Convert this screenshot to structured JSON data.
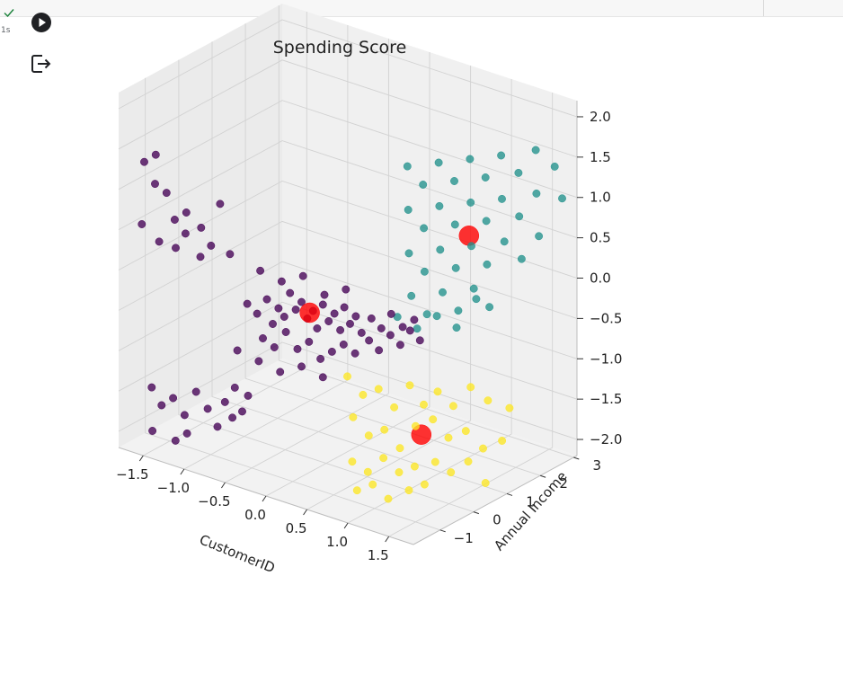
{
  "cell": {
    "exec_time": "1s",
    "status": "success",
    "run_icon": "play-circle-icon",
    "output_icon": "output-arrow-icon",
    "check_color": "#188038"
  },
  "chart_data": {
    "type": "scatter",
    "projection": "3d",
    "title": "Spending Score",
    "xlabel": "CustomerID",
    "ylabel": "Annual Income",
    "zlabel": "",
    "xlim": [
      -1.8,
      1.8
    ],
    "ylim": [
      -1.8,
      3.1
    ],
    "zlim": [
      -2.2,
      2.2
    ],
    "xticks": [
      "−1.5",
      "−1.0",
      "−0.5",
      "0.0",
      "0.5",
      "1.0",
      "1.5"
    ],
    "yticks": [
      "−1",
      "0",
      "1",
      "2",
      "3"
    ],
    "zticks": [
      "2.0",
      "1.5",
      "1.0",
      "0.5",
      "0.0",
      "−0.5",
      "−1.0",
      "−1.5",
      "−2.0"
    ],
    "grid": true,
    "colors": {
      "cluster_0": "#440154",
      "cluster_1": "#21918c",
      "cluster_2": "#fde725",
      "centroid": "#ff0000"
    },
    "clusters": [
      {
        "cluster": 0,
        "color": "#440154",
        "points": [
          [
            -1.65,
            -1.4,
            1.3
          ],
          [
            -1.55,
            -1.3,
            1.4
          ],
          [
            -1.6,
            -1.2,
            1.0
          ],
          [
            -1.5,
            -1.1,
            0.9
          ],
          [
            -1.7,
            -1.35,
            0.5
          ],
          [
            -1.55,
            -1.2,
            0.3
          ],
          [
            -1.4,
            -1.1,
            0.6
          ],
          [
            -1.3,
            -1.0,
            0.7
          ],
          [
            -1.45,
            -0.95,
            0.2
          ],
          [
            -1.35,
            -0.9,
            0.4
          ],
          [
            -1.2,
            -0.8,
            0.5
          ],
          [
            -1.1,
            -0.75,
            0.3
          ],
          [
            -1.25,
            -0.7,
            0.1
          ],
          [
            -1.05,
            -0.6,
            0.8
          ],
          [
            -0.95,
            -0.55,
            0.2
          ],
          [
            -1.6,
            -1.3,
            -1.5
          ],
          [
            -1.5,
            -1.25,
            -1.7
          ],
          [
            -1.4,
            -1.15,
            -1.6
          ],
          [
            -1.3,
            -1.05,
            -1.8
          ],
          [
            -1.55,
            -1.4,
            -2.0
          ],
          [
            -1.2,
            -0.95,
            -1.5
          ],
          [
            -1.1,
            -0.85,
            -1.7
          ],
          [
            -1.0,
            -0.8,
            -1.9
          ],
          [
            -1.35,
            -1.2,
            -2.1
          ],
          [
            -1.25,
            -1.1,
            -2.0
          ],
          [
            -0.95,
            -0.7,
            -1.6
          ],
          [
            -0.85,
            -0.65,
            -1.4
          ],
          [
            -0.9,
            -0.6,
            -1.8
          ],
          [
            -0.8,
            -0.55,
            -1.7
          ],
          [
            -0.75,
            -0.5,
            -1.5
          ],
          [
            -0.8,
            -0.4,
            -0.4
          ],
          [
            -0.7,
            -0.35,
            -0.5
          ],
          [
            -0.6,
            -0.3,
            -0.3
          ],
          [
            -0.55,
            -0.25,
            -0.6
          ],
          [
            -0.5,
            -0.2,
            -0.4
          ],
          [
            -0.45,
            -0.15,
            -0.5
          ],
          [
            -0.4,
            -0.1,
            -0.2
          ],
          [
            -0.35,
            -0.05,
            -0.4
          ],
          [
            -0.3,
            0.0,
            -0.3
          ],
          [
            -0.25,
            0.05,
            -0.5
          ],
          [
            -0.2,
            0.1,
            -0.4
          ],
          [
            -0.15,
            0.1,
            -0.6
          ],
          [
            -0.1,
            0.15,
            -0.3
          ],
          [
            -0.05,
            0.2,
            -0.5
          ],
          [
            0.0,
            0.25,
            -0.4
          ],
          [
            0.05,
            0.3,
            -0.6
          ],
          [
            0.1,
            0.3,
            -0.3
          ],
          [
            0.15,
            0.35,
            -0.5
          ],
          [
            0.2,
            0.4,
            -0.4
          ],
          [
            0.25,
            0.45,
            -0.6
          ],
          [
            -0.65,
            -0.3,
            -0.8
          ],
          [
            -0.55,
            -0.2,
            -0.9
          ],
          [
            -0.45,
            -0.1,
            -0.7
          ],
          [
            -0.35,
            0.0,
            -0.9
          ],
          [
            -0.25,
            0.1,
            -0.8
          ],
          [
            -0.15,
            0.2,
            -1.0
          ],
          [
            -0.05,
            0.3,
            -0.9
          ],
          [
            0.05,
            0.4,
            -0.8
          ],
          [
            0.15,
            0.5,
            -0.9
          ],
          [
            0.3,
            0.55,
            -0.7
          ],
          [
            0.4,
            0.6,
            -0.8
          ],
          [
            0.5,
            0.7,
            -0.6
          ],
          [
            0.6,
            0.75,
            -0.7
          ],
          [
            0.7,
            0.8,
            -0.5
          ],
          [
            0.8,
            0.85,
            -0.6
          ],
          [
            0.35,
            0.5,
            -0.4
          ],
          [
            0.45,
            0.55,
            -0.5
          ],
          [
            0.55,
            0.6,
            -0.3
          ],
          [
            0.65,
            0.7,
            -0.45
          ],
          [
            0.75,
            0.8,
            -0.35
          ],
          [
            -0.9,
            -0.45,
            -1.0
          ],
          [
            -0.7,
            -0.3,
            -1.1
          ],
          [
            -0.5,
            -0.15,
            -1.2
          ],
          [
            -0.3,
            0.0,
            -1.1
          ],
          [
            -0.1,
            0.15,
            -1.2
          ],
          [
            -0.6,
            -0.5,
            0.1
          ],
          [
            -0.4,
            -0.35,
            0.0
          ],
          [
            -0.2,
            -0.2,
            0.1
          ],
          [
            0.0,
            -0.05,
            -0.1
          ],
          [
            0.2,
            0.1,
            0.0
          ]
        ]
      },
      {
        "cluster": 1,
        "color": "#21918c",
        "points": [
          [
            0.3,
            1.7,
            1.2
          ],
          [
            0.45,
            1.8,
            1.0
          ],
          [
            0.6,
            1.9,
            1.3
          ],
          [
            0.75,
            2.0,
            1.1
          ],
          [
            0.9,
            2.1,
            1.4
          ],
          [
            1.05,
            2.2,
            1.2
          ],
          [
            1.2,
            2.3,
            1.5
          ],
          [
            1.35,
            2.45,
            1.3
          ],
          [
            1.5,
            2.6,
            1.6
          ],
          [
            1.65,
            2.8,
            1.4
          ],
          [
            0.35,
            1.6,
            0.7
          ],
          [
            0.5,
            1.7,
            0.5
          ],
          [
            0.65,
            1.8,
            0.8
          ],
          [
            0.8,
            1.9,
            0.6
          ],
          [
            0.95,
            2.0,
            0.9
          ],
          [
            1.1,
            2.1,
            0.7
          ],
          [
            1.25,
            2.2,
            1.0
          ],
          [
            1.4,
            2.35,
            0.8
          ],
          [
            1.55,
            2.5,
            1.1
          ],
          [
            1.7,
            2.9,
            1.0
          ],
          [
            0.4,
            1.5,
            0.2
          ],
          [
            0.55,
            1.6,
            0.0
          ],
          [
            0.7,
            1.7,
            0.3
          ],
          [
            0.85,
            1.8,
            0.1
          ],
          [
            1.0,
            1.9,
            0.4
          ],
          [
            1.15,
            2.0,
            0.2
          ],
          [
            1.3,
            2.15,
            0.5
          ],
          [
            1.45,
            2.3,
            0.3
          ],
          [
            1.6,
            2.45,
            0.6
          ],
          [
            0.45,
            1.45,
            -0.3
          ],
          [
            0.6,
            1.55,
            -0.5
          ],
          [
            0.75,
            1.65,
            -0.2
          ],
          [
            0.9,
            1.75,
            -0.4
          ],
          [
            1.05,
            1.85,
            -0.1
          ],
          [
            1.2,
            1.95,
            -0.3
          ],
          [
            0.3,
            1.4,
            -0.6
          ],
          [
            0.5,
            1.5,
            -0.7
          ],
          [
            0.7,
            1.6,
            -0.5
          ],
          [
            0.9,
            1.7,
            -0.6
          ],
          [
            1.1,
            1.8,
            -0.2
          ]
        ]
      },
      {
        "cluster": 2,
        "color": "#fde725",
        "points": [
          [
            0.3,
            -0.1,
            -1.0
          ],
          [
            0.45,
            0.0,
            -1.2
          ],
          [
            0.6,
            0.1,
            -1.1
          ],
          [
            0.75,
            0.2,
            -1.3
          ],
          [
            0.9,
            0.3,
            -1.0
          ],
          [
            0.35,
            -0.05,
            -1.5
          ],
          [
            0.5,
            0.05,
            -1.7
          ],
          [
            0.65,
            0.15,
            -1.6
          ],
          [
            0.8,
            0.25,
            -1.8
          ],
          [
            0.95,
            0.35,
            -1.5
          ],
          [
            0.4,
            -0.2,
            -2.0
          ],
          [
            0.55,
            -0.1,
            -2.1
          ],
          [
            0.7,
            0.0,
            -1.9
          ],
          [
            0.85,
            0.1,
            -2.05
          ],
          [
            1.0,
            0.2,
            -1.95
          ],
          [
            1.1,
            0.5,
            -1.4
          ],
          [
            1.25,
            0.6,
            -1.6
          ],
          [
            1.4,
            0.75,
            -1.5
          ],
          [
            1.55,
            0.9,
            -1.7
          ],
          [
            1.7,
            1.1,
            -1.6
          ],
          [
            1.15,
            0.45,
            -1.9
          ],
          [
            1.3,
            0.55,
            -2.0
          ],
          [
            1.45,
            0.7,
            -1.85
          ],
          [
            1.6,
            0.85,
            -2.1
          ],
          [
            1.75,
            1.2,
            -1.2
          ],
          [
            0.5,
            -0.3,
            -2.3
          ],
          [
            0.65,
            -0.2,
            -2.2
          ],
          [
            0.8,
            -0.1,
            -2.35
          ],
          [
            1.05,
            0.35,
            -1.2
          ],
          [
            1.2,
            0.4,
            -1.0
          ],
          [
            1.35,
            0.5,
            -1.15
          ],
          [
            1.5,
            0.65,
            -0.9
          ],
          [
            1.65,
            0.8,
            -1.05
          ],
          [
            0.95,
            0.15,
            -2.25
          ],
          [
            1.1,
            0.25,
            -2.15
          ]
        ]
      }
    ],
    "centroids": [
      [
        -0.2,
        0.0,
        -0.4
      ],
      [
        0.95,
        1.95,
        0.5
      ],
      [
        1.0,
        0.4,
        -1.6
      ]
    ]
  }
}
